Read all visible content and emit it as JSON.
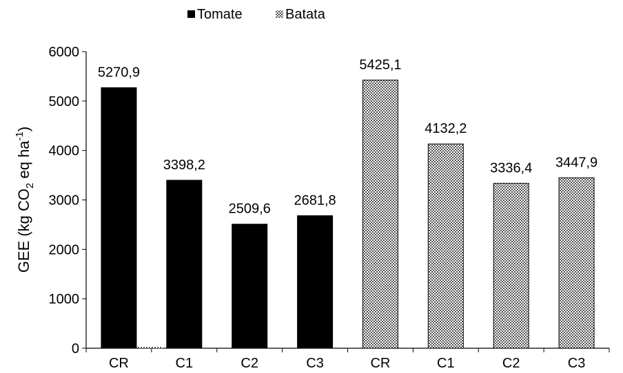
{
  "chart_data": {
    "type": "bar",
    "title": "",
    "xlabel": "",
    "ylabel_parts": {
      "main": "GEE (kg CO",
      "sub": "2",
      "mid": " eq ha",
      "sup": "-1",
      "end": ")"
    },
    "ylim": [
      0,
      6000
    ],
    "yticks": [
      0,
      1000,
      2000,
      3000,
      4000,
      5000,
      6000
    ],
    "categories": [
      "CR",
      "C1",
      "C2",
      "C3",
      "CR",
      "C1",
      "C2",
      "C3"
    ],
    "legend_position": "top",
    "grid": false,
    "series": [
      {
        "name": "Tomate",
        "color": "#000000",
        "pattern": "solid",
        "values": [
          5270.9,
          3398.2,
          2509.6,
          2681.8,
          null,
          null,
          null,
          null
        ],
        "labels": [
          "5270,9",
          "3398,2",
          "2509,6",
          "2681,8"
        ]
      },
      {
        "name": "Batata",
        "color": "#555555",
        "pattern": "checker",
        "values": [
          0,
          null,
          null,
          null,
          5425.1,
          4132.2,
          3336.4,
          3447.9
        ],
        "labels": [
          "",
          "",
          "",
          "",
          "5425,1",
          "4132,2",
          "3336,4",
          "3447,9"
        ]
      }
    ]
  }
}
